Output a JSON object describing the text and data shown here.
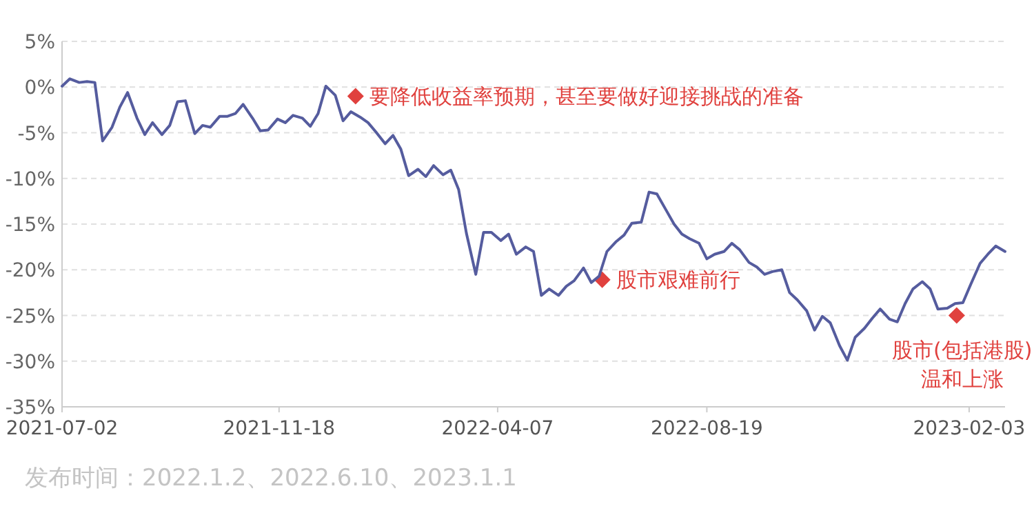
{
  "chart_data": {
    "type": "line",
    "x": [
      "2021-07-02",
      "2021-07-07",
      "2021-07-13",
      "2021-07-18",
      "2021-07-23",
      "2021-07-28",
      "2021-08-03",
      "2021-08-08",
      "2021-08-13",
      "2021-08-19",
      "2021-08-24",
      "2021-08-29",
      "2021-09-04",
      "2021-09-09",
      "2021-09-14",
      "2021-09-19",
      "2021-09-25",
      "2021-09-30",
      "2021-10-05",
      "2021-10-11",
      "2021-10-16",
      "2021-10-21",
      "2021-10-26",
      "2021-11-01",
      "2021-11-06",
      "2021-11-11",
      "2021-11-17",
      "2021-11-22",
      "2021-11-27",
      "2021-12-03",
      "2021-12-08",
      "2021-12-13",
      "2021-12-18",
      "2021-12-24",
      "2021-12-29",
      "2022-01-03",
      "2022-01-09",
      "2022-01-14",
      "2022-01-19",
      "2022-01-25",
      "2022-01-30",
      "2022-02-04",
      "2022-02-09",
      "2022-02-15",
      "2022-02-20",
      "2022-02-25",
      "2022-03-03",
      "2022-03-08",
      "2022-03-13",
      "2022-03-18",
      "2022-03-24",
      "2022-03-29",
      "2022-04-03",
      "2022-04-09",
      "2022-04-14",
      "2022-04-19",
      "2022-04-25",
      "2022-04-30",
      "2022-05-05",
      "2022-05-10",
      "2022-05-16",
      "2022-05-21",
      "2022-05-26",
      "2022-06-01",
      "2022-06-06",
      "2022-06-11",
      "2022-06-16",
      "2022-06-22",
      "2022-06-27",
      "2022-07-02",
      "2022-07-08",
      "2022-07-13",
      "2022-07-18",
      "2022-07-24",
      "2022-07-29",
      "2022-08-03",
      "2022-08-08",
      "2022-08-14",
      "2022-08-19",
      "2022-08-24",
      "2022-08-30",
      "2022-09-04",
      "2022-09-09",
      "2022-09-15",
      "2022-09-20",
      "2022-09-25",
      "2022-09-30",
      "2022-10-06",
      "2022-10-11",
      "2022-10-16",
      "2022-10-22",
      "2022-10-27",
      "2022-11-01",
      "2022-11-06",
      "2022-11-12",
      "2022-11-17",
      "2022-11-22",
      "2022-11-28",
      "2022-12-03",
      "2022-12-08",
      "2022-12-14",
      "2022-12-19",
      "2022-12-24",
      "2022-12-29",
      "2023-01-04",
      "2023-01-09",
      "2023-01-14",
      "2023-01-20",
      "2023-01-25",
      "2023-01-30",
      "2023-02-04",
      "2023-02-10",
      "2023-02-15",
      "2023-02-20",
      "2023-02-26"
    ],
    "series": [
      {
        "color": "#555c9e",
        "values": [
          0.1,
          0.9,
          0.5,
          0.6,
          0.5,
          -5.9,
          -4.4,
          -2.2,
          -0.6,
          -3.4,
          -5.2,
          -3.9,
          -5.2,
          -4.2,
          -1.6,
          -1.5,
          -5.1,
          -4.2,
          -4.4,
          -3.2,
          -3.2,
          -2.9,
          -1.9,
          -3.4,
          -4.8,
          -4.7,
          -3.5,
          -3.9,
          -3.1,
          -3.4,
          -4.3,
          -2.9,
          0.1,
          -0.9,
          -3.7,
          -2.7,
          -3.3,
          -3.9,
          -4.9,
          -6.2,
          -5.3,
          -6.8,
          -9.7,
          -9.0,
          -9.8,
          -8.6,
          -9.6,
          -9.1,
          -11.2,
          -16.0,
          -20.5,
          -15.9,
          -15.9,
          -16.8,
          -16.1,
          -18.3,
          -17.5,
          -18.0,
          -22.8,
          -22.1,
          -22.8,
          -21.8,
          -21.2,
          -19.8,
          -21.4,
          -20.7,
          -18.0,
          -16.9,
          -16.2,
          -14.9,
          -14.8,
          -11.5,
          -11.7,
          -13.5,
          -15.0,
          -16.1,
          -16.6,
          -17.1,
          -18.8,
          -18.3,
          -18.0,
          -17.1,
          -17.8,
          -19.2,
          -19.7,
          -20.5,
          -20.2,
          -20.0,
          -22.5,
          -23.3,
          -24.5,
          -26.6,
          -25.1,
          -25.8,
          -28.3,
          -29.9,
          -27.4,
          -26.4,
          -25.3,
          -24.3,
          -25.4,
          -25.7,
          -23.7,
          -22.1,
          -21.3,
          -22.1,
          -24.3,
          -24.2,
          -23.7,
          -23.6,
          -21.6,
          -19.3,
          -18.3,
          -17.4,
          -18.0
        ]
      }
    ],
    "xlim": [
      "2021-07-02",
      "2023-02-26"
    ],
    "xticks": [
      "2021-07-02",
      "2021-11-18",
      "2022-04-07",
      "2022-08-19",
      "2023-02-03"
    ],
    "ylim": [
      -35,
      5
    ],
    "yticks": [
      {
        "value": 5,
        "label": "5%"
      },
      {
        "value": 0,
        "label": "0%"
      },
      {
        "value": -5,
        "label": "-5%"
      },
      {
        "value": -10,
        "label": "-10%"
      },
      {
        "value": -15,
        "label": "-15%"
      },
      {
        "value": -20,
        "label": "-20%"
      },
      {
        "value": -25,
        "label": "-25%"
      },
      {
        "value": -30,
        "label": "-30%"
      },
      {
        "value": -35,
        "label": "-35%"
      }
    ],
    "grid": "y",
    "marker": "none",
    "annotations": [
      {
        "text": "要降低收益率预期，甚至要做好迎接挑战的准备",
        "x": "2022-01-06",
        "y": -1
      },
      {
        "text": "股市艰难前行",
        "x": "2022-06-13",
        "y": -21.1
      },
      {
        "text": "股市(包括港股)\n温和上涨",
        "x": "2023-01-26",
        "y": -25
      },
      "发布时间：2022.1.2、2022.6.10、2023.1.1"
    ]
  }
}
